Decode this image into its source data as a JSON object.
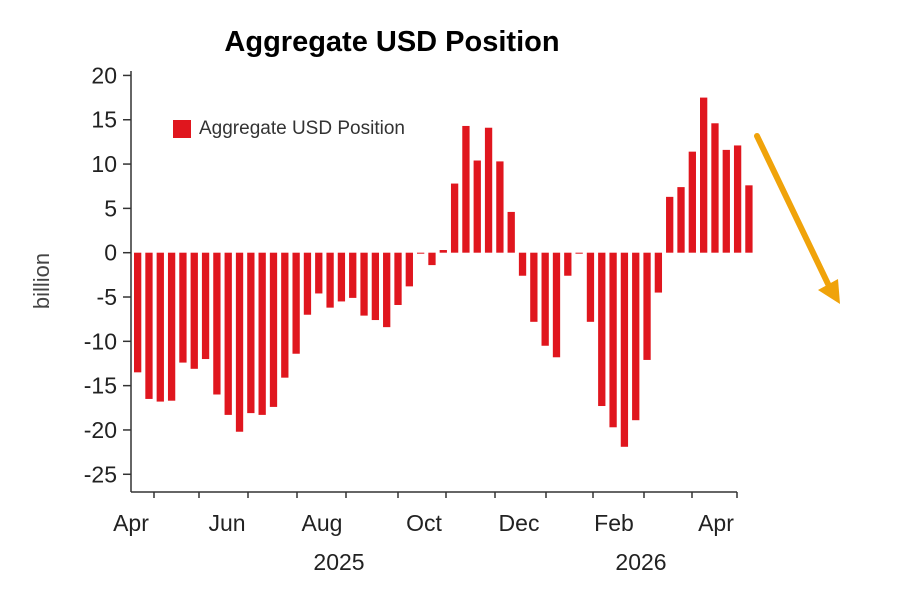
{
  "chart_data": {
    "type": "bar",
    "title": "Aggregate USD Position",
    "ylabel": "billion",
    "ylim": [
      -27,
      20.5
    ],
    "yticks": [
      20,
      15,
      10,
      5,
      0,
      -5,
      -10,
      -15,
      -20,
      -25
    ],
    "x_month_labels": [
      "Apr",
      "Jun",
      "Aug",
      "Oct",
      "Dec",
      "Feb",
      "Apr"
    ],
    "x_year_labels": [
      "2025",
      "2026"
    ],
    "legend": "top-left",
    "grid": false,
    "colors": {
      "bars": "#e0161e",
      "arrow": "#f0a30a"
    },
    "series": [
      {
        "name": "Aggregate USD Position",
        "values": [
          -13.5,
          -16.5,
          -16.8,
          -16.7,
          -12.4,
          -13.1,
          -12.0,
          -16.0,
          -18.3,
          -20.2,
          -18.1,
          -18.3,
          -17.4,
          -14.1,
          -11.4,
          -7.0,
          -4.6,
          -6.2,
          -5.5,
          -5.1,
          -7.1,
          -7.6,
          -8.4,
          -5.9,
          -3.8,
          -0.1,
          -1.4,
          0.3,
          7.8,
          14.3,
          10.4,
          14.1,
          10.3,
          4.6,
          -2.6,
          -7.8,
          -10.5,
          -11.8,
          -2.6,
          -0.1,
          -7.8,
          -17.3,
          -19.7,
          -21.9,
          -18.9,
          -12.1,
          -4.5,
          6.3,
          7.4,
          11.4,
          17.5,
          14.6,
          11.6,
          12.1,
          7.6
        ]
      }
    ]
  }
}
